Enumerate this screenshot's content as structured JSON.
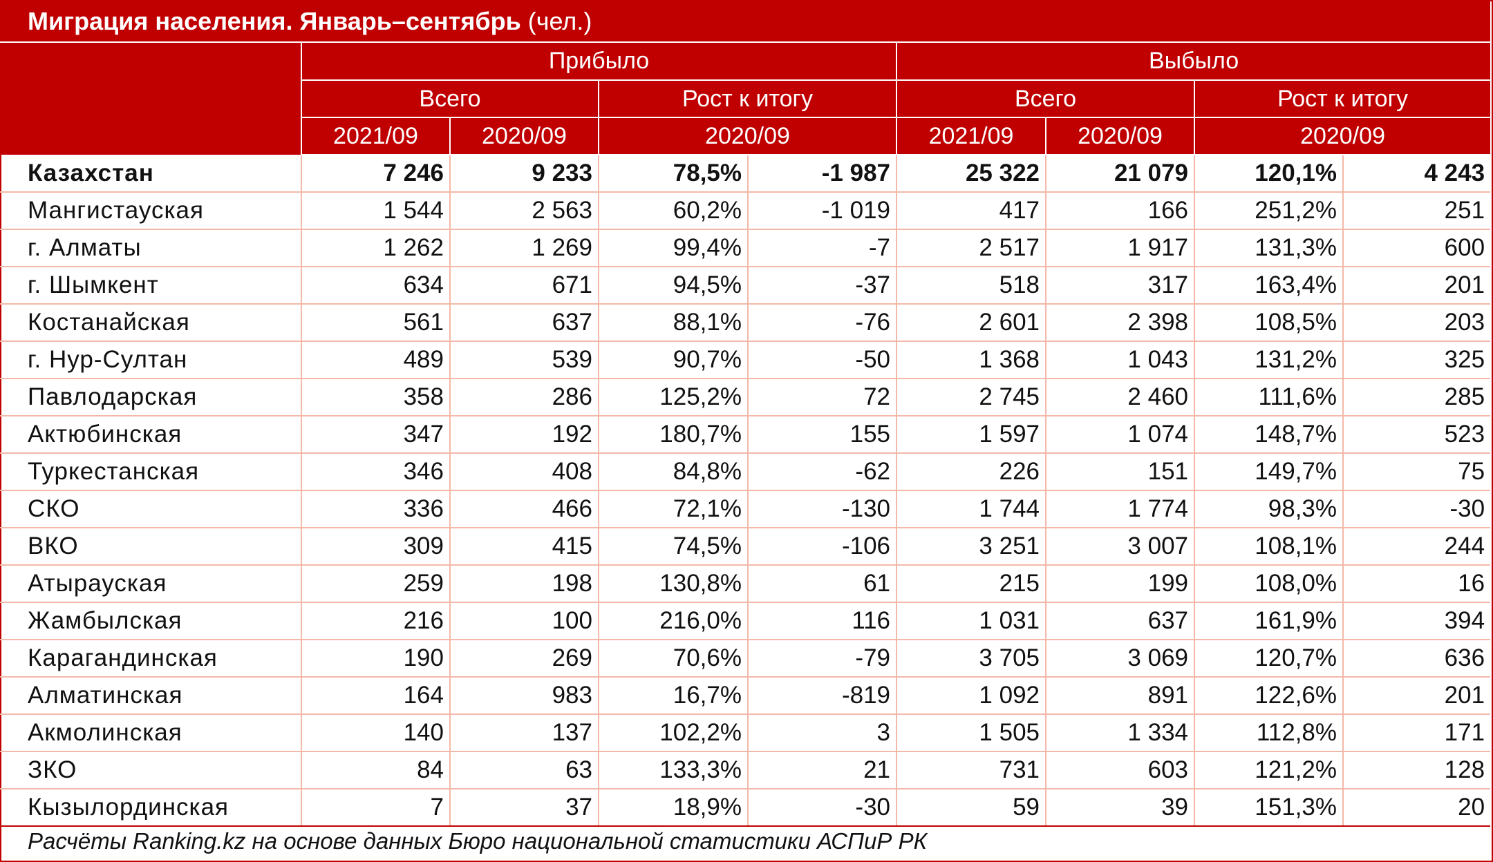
{
  "title": {
    "bold": "Миграция населения. Январь–сентябрь",
    "unit": " (чел.)"
  },
  "header": {
    "arrived": "Прибыло",
    "departed": "Выбыло",
    "total": "Всего",
    "growth": "Рост к итогу",
    "y2021": "2021/09",
    "y2020": "2020/09"
  },
  "rows": [
    {
      "name": "Казахстан",
      "a21": "7 246",
      "a20": "9 233",
      "apct": "78,5%",
      "adiff": "-1 987",
      "d21": "25 322",
      "d20": "21 079",
      "dpct": "120,1%",
      "ddiff": "4 243"
    },
    {
      "name": "Мангистауская",
      "a21": "1 544",
      "a20": "2 563",
      "apct": "60,2%",
      "adiff": "-1 019",
      "d21": "417",
      "d20": "166",
      "dpct": "251,2%",
      "ddiff": "251"
    },
    {
      "name": "г. Алматы",
      "a21": "1 262",
      "a20": "1 269",
      "apct": "99,4%",
      "adiff": "-7",
      "d21": "2 517",
      "d20": "1 917",
      "dpct": "131,3%",
      "ddiff": "600"
    },
    {
      "name": "г. Шымкент",
      "a21": "634",
      "a20": "671",
      "apct": "94,5%",
      "adiff": "-37",
      "d21": "518",
      "d20": "317",
      "dpct": "163,4%",
      "ddiff": "201"
    },
    {
      "name": "Костанайская",
      "a21": "561",
      "a20": "637",
      "apct": "88,1%",
      "adiff": "-76",
      "d21": "2 601",
      "d20": "2 398",
      "dpct": "108,5%",
      "ddiff": "203"
    },
    {
      "name": "г. Нур-Султан",
      "a21": "489",
      "a20": "539",
      "apct": "90,7%",
      "adiff": "-50",
      "d21": "1 368",
      "d20": "1 043",
      "dpct": "131,2%",
      "ddiff": "325"
    },
    {
      "name": "Павлодарская",
      "a21": "358",
      "a20": "286",
      "apct": "125,2%",
      "adiff": "72",
      "d21": "2 745",
      "d20": "2 460",
      "dpct": "111,6%",
      "ddiff": "285"
    },
    {
      "name": "Актюбинская",
      "a21": "347",
      "a20": "192",
      "apct": "180,7%",
      "adiff": "155",
      "d21": "1 597",
      "d20": "1 074",
      "dpct": "148,7%",
      "ddiff": "523"
    },
    {
      "name": "Туркестанская",
      "a21": "346",
      "a20": "408",
      "apct": "84,8%",
      "adiff": "-62",
      "d21": "226",
      "d20": "151",
      "dpct": "149,7%",
      "ddiff": "75"
    },
    {
      "name": "СКО",
      "a21": "336",
      "a20": "466",
      "apct": "72,1%",
      "adiff": "-130",
      "d21": "1 744",
      "d20": "1 774",
      "dpct": "98,3%",
      "ddiff": "-30"
    },
    {
      "name": "ВКО",
      "a21": "309",
      "a20": "415",
      "apct": "74,5%",
      "adiff": "-106",
      "d21": "3 251",
      "d20": "3 007",
      "dpct": "108,1%",
      "ddiff": "244"
    },
    {
      "name": "Атырауская",
      "a21": "259",
      "a20": "198",
      "apct": "130,8%",
      "adiff": "61",
      "d21": "215",
      "d20": "199",
      "dpct": "108,0%",
      "ddiff": "16"
    },
    {
      "name": "Жамбылская",
      "a21": "216",
      "a20": "100",
      "apct": "216,0%",
      "adiff": "116",
      "d21": "1 031",
      "d20": "637",
      "dpct": "161,9%",
      "ddiff": "394"
    },
    {
      "name": "Карагандинская",
      "a21": "190",
      "a20": "269",
      "apct": "70,6%",
      "adiff": "-79",
      "d21": "3 705",
      "d20": "3 069",
      "dpct": "120,7%",
      "ddiff": "636"
    },
    {
      "name": "Алматинская",
      "a21": "164",
      "a20": "983",
      "apct": "16,7%",
      "adiff": "-819",
      "d21": "1 092",
      "d20": "891",
      "dpct": "122,6%",
      "ddiff": "201"
    },
    {
      "name": "Акмолинская",
      "a21": "140",
      "a20": "137",
      "apct": "102,2%",
      "adiff": "3",
      "d21": "1 505",
      "d20": "1 334",
      "dpct": "112,8%",
      "ddiff": "171"
    },
    {
      "name": "ЗКО",
      "a21": "84",
      "a20": "63",
      "apct": "133,3%",
      "adiff": "21",
      "d21": "731",
      "d20": "603",
      "dpct": "121,2%",
      "ddiff": "128"
    },
    {
      "name": "Кызылординская",
      "a21": "7",
      "a20": "37",
      "apct": "18,9%",
      "adiff": "-30",
      "d21": "59",
      "d20": "39",
      "dpct": "151,3%",
      "ddiff": "20"
    }
  ],
  "footnote": "Расчёты Ranking.kz на основе данных Бюро национальной статистики АСПиР РК",
  "colors": {
    "header_bg": "#c00000",
    "grid_line": "#f4b8a8",
    "text": "#111111"
  }
}
